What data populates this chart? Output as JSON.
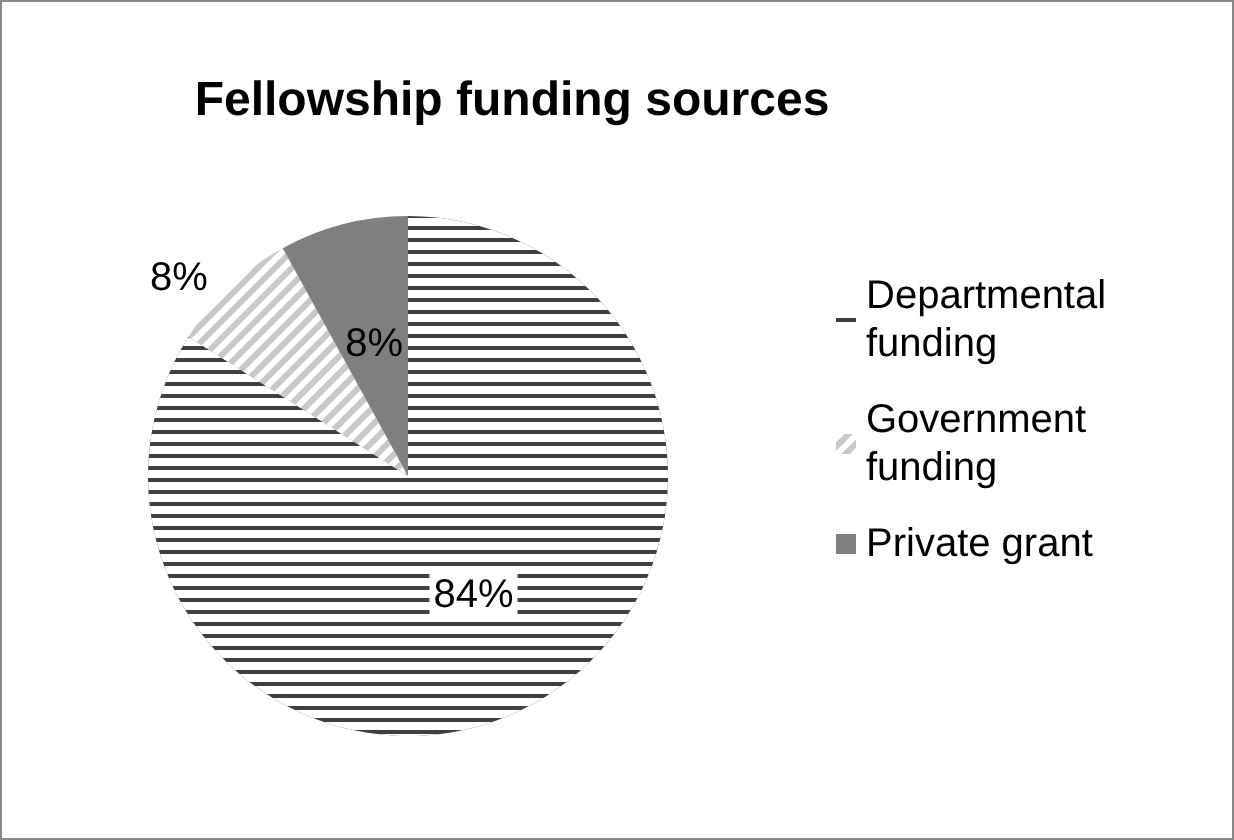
{
  "chart_data": {
    "type": "pie",
    "title": "Fellowship funding sources",
    "categories": [
      "Departmental funding",
      "Government funding",
      "Private grant"
    ],
    "values": [
      84,
      8,
      8
    ],
    "colors": [
      "#404040",
      "#c8c8c8",
      "#7f7f7f"
    ],
    "value_labels": [
      "84%",
      "8%",
      "8%"
    ],
    "legend": "right"
  }
}
